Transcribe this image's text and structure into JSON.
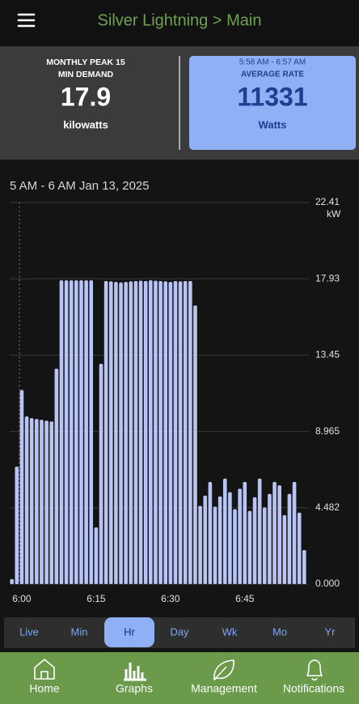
{
  "header": {
    "title": "Silver Lightning > Main"
  },
  "stats": {
    "peak": {
      "label_lines": [
        "MONTHLY PEAK 15",
        "MIN DEMAND"
      ],
      "value": "17.9",
      "unit": "kilowatts"
    },
    "average": {
      "range": "5:58 AM - 6:57 AM",
      "label": "AVERAGE RATE",
      "value": "11331",
      "unit": "Watts"
    }
  },
  "chart_data": {
    "type": "bar",
    "title": "5 AM - 6 AM Jan 13, 2025",
    "y_unit": "kW",
    "categories": [
      null,
      null,
      "6:00",
      null,
      null,
      null,
      null,
      null,
      null,
      null,
      null,
      null,
      null,
      null,
      null,
      null,
      null,
      "6:15",
      null,
      null,
      null,
      null,
      null,
      null,
      null,
      null,
      null,
      null,
      null,
      null,
      null,
      null,
      "6:30",
      null,
      null,
      null,
      null,
      null,
      null,
      null,
      null,
      null,
      null,
      null,
      null,
      null,
      null,
      "6:45",
      null,
      null,
      null,
      null,
      null,
      null,
      null,
      null,
      null,
      null,
      null,
      null
    ],
    "values": [
      0.3,
      6.9,
      11.4,
      9.85,
      9.75,
      9.7,
      9.65,
      9.6,
      9.55,
      12.65,
      17.84,
      17.84,
      17.84,
      17.84,
      17.84,
      17.84,
      17.84,
      3.33,
      12.94,
      17.8,
      17.78,
      17.75,
      17.72,
      17.75,
      17.78,
      17.8,
      17.82,
      17.8,
      17.85,
      17.82,
      17.8,
      17.78,
      17.75,
      17.8,
      17.78,
      17.8,
      17.8,
      16.37,
      4.6,
      5.2,
      6.0,
      4.55,
      5.15,
      6.2,
      5.4,
      4.4,
      5.6,
      6.0,
      4.3,
      5.1,
      6.2,
      4.5,
      5.3,
      6.0,
      5.8,
      4.05,
      5.3,
      6.0,
      4.2,
      2.0
    ],
    "color": "#b9c4f5",
    "ylim": [
      0,
      22.41
    ],
    "yticks": [
      {
        "value": 0,
        "label": "0.000"
      },
      4.482,
      8.965,
      13.45,
      17.93,
      22.41
    ],
    "grid": true
  },
  "periods": {
    "items": [
      "Live",
      "Min",
      "Hr",
      "Day",
      "Wk",
      "Mo",
      "Yr"
    ],
    "selected": 2
  },
  "nav": {
    "items": [
      "Home",
      "Graphs",
      "Management",
      "Notifications"
    ]
  }
}
